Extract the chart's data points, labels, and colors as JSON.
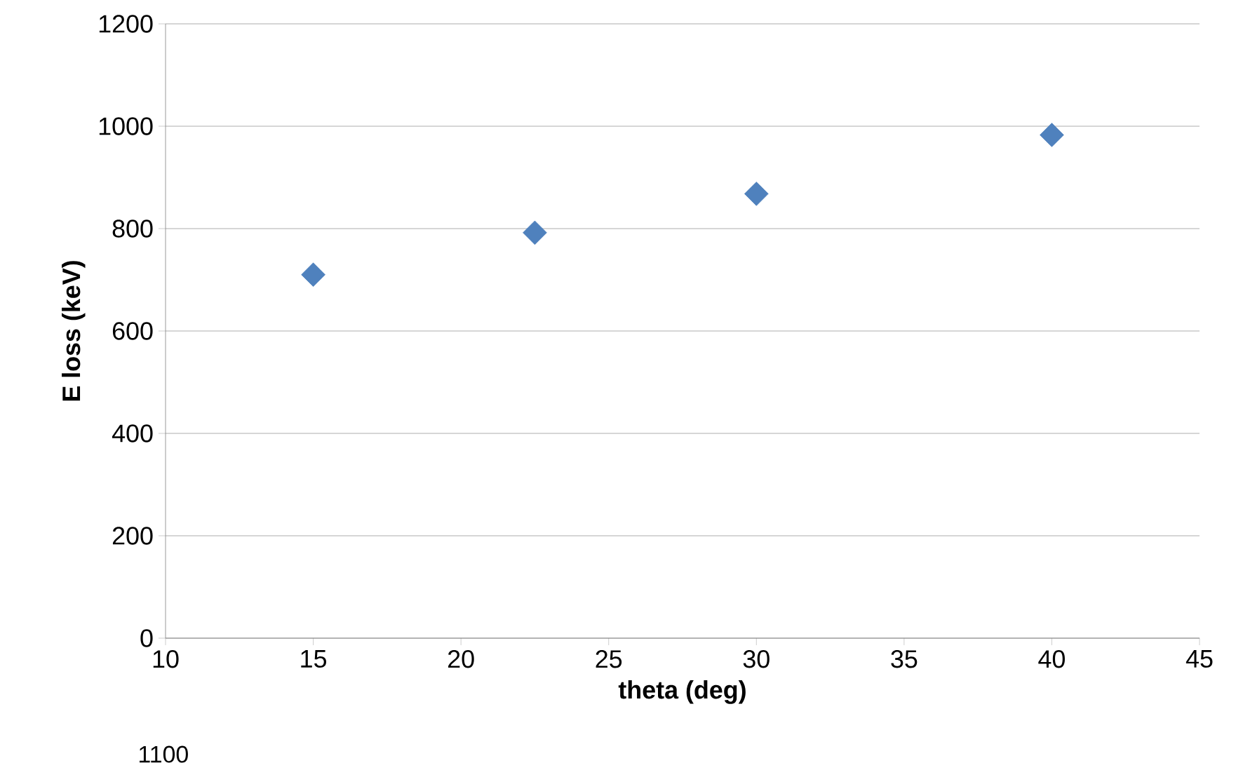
{
  "chart_data": {
    "type": "scatter",
    "xlabel": "theta (deg)",
    "ylabel": "E loss (keV)",
    "x": [
      15,
      22.5,
      30,
      40
    ],
    "series": [
      {
        "color": "#4f81bd",
        "values": [
          710,
          792,
          868,
          983
        ]
      }
    ],
    "xlim": [
      10,
      45
    ],
    "ylim": [
      0,
      1200
    ],
    "xticks": [
      10,
      15,
      20,
      25,
      30,
      35,
      40,
      45
    ],
    "yticks": [
      0,
      200,
      400,
      600,
      800,
      1000,
      1200
    ],
    "grid": "y",
    "marker": "diamond",
    "annotations": [
      "1100"
    ]
  }
}
